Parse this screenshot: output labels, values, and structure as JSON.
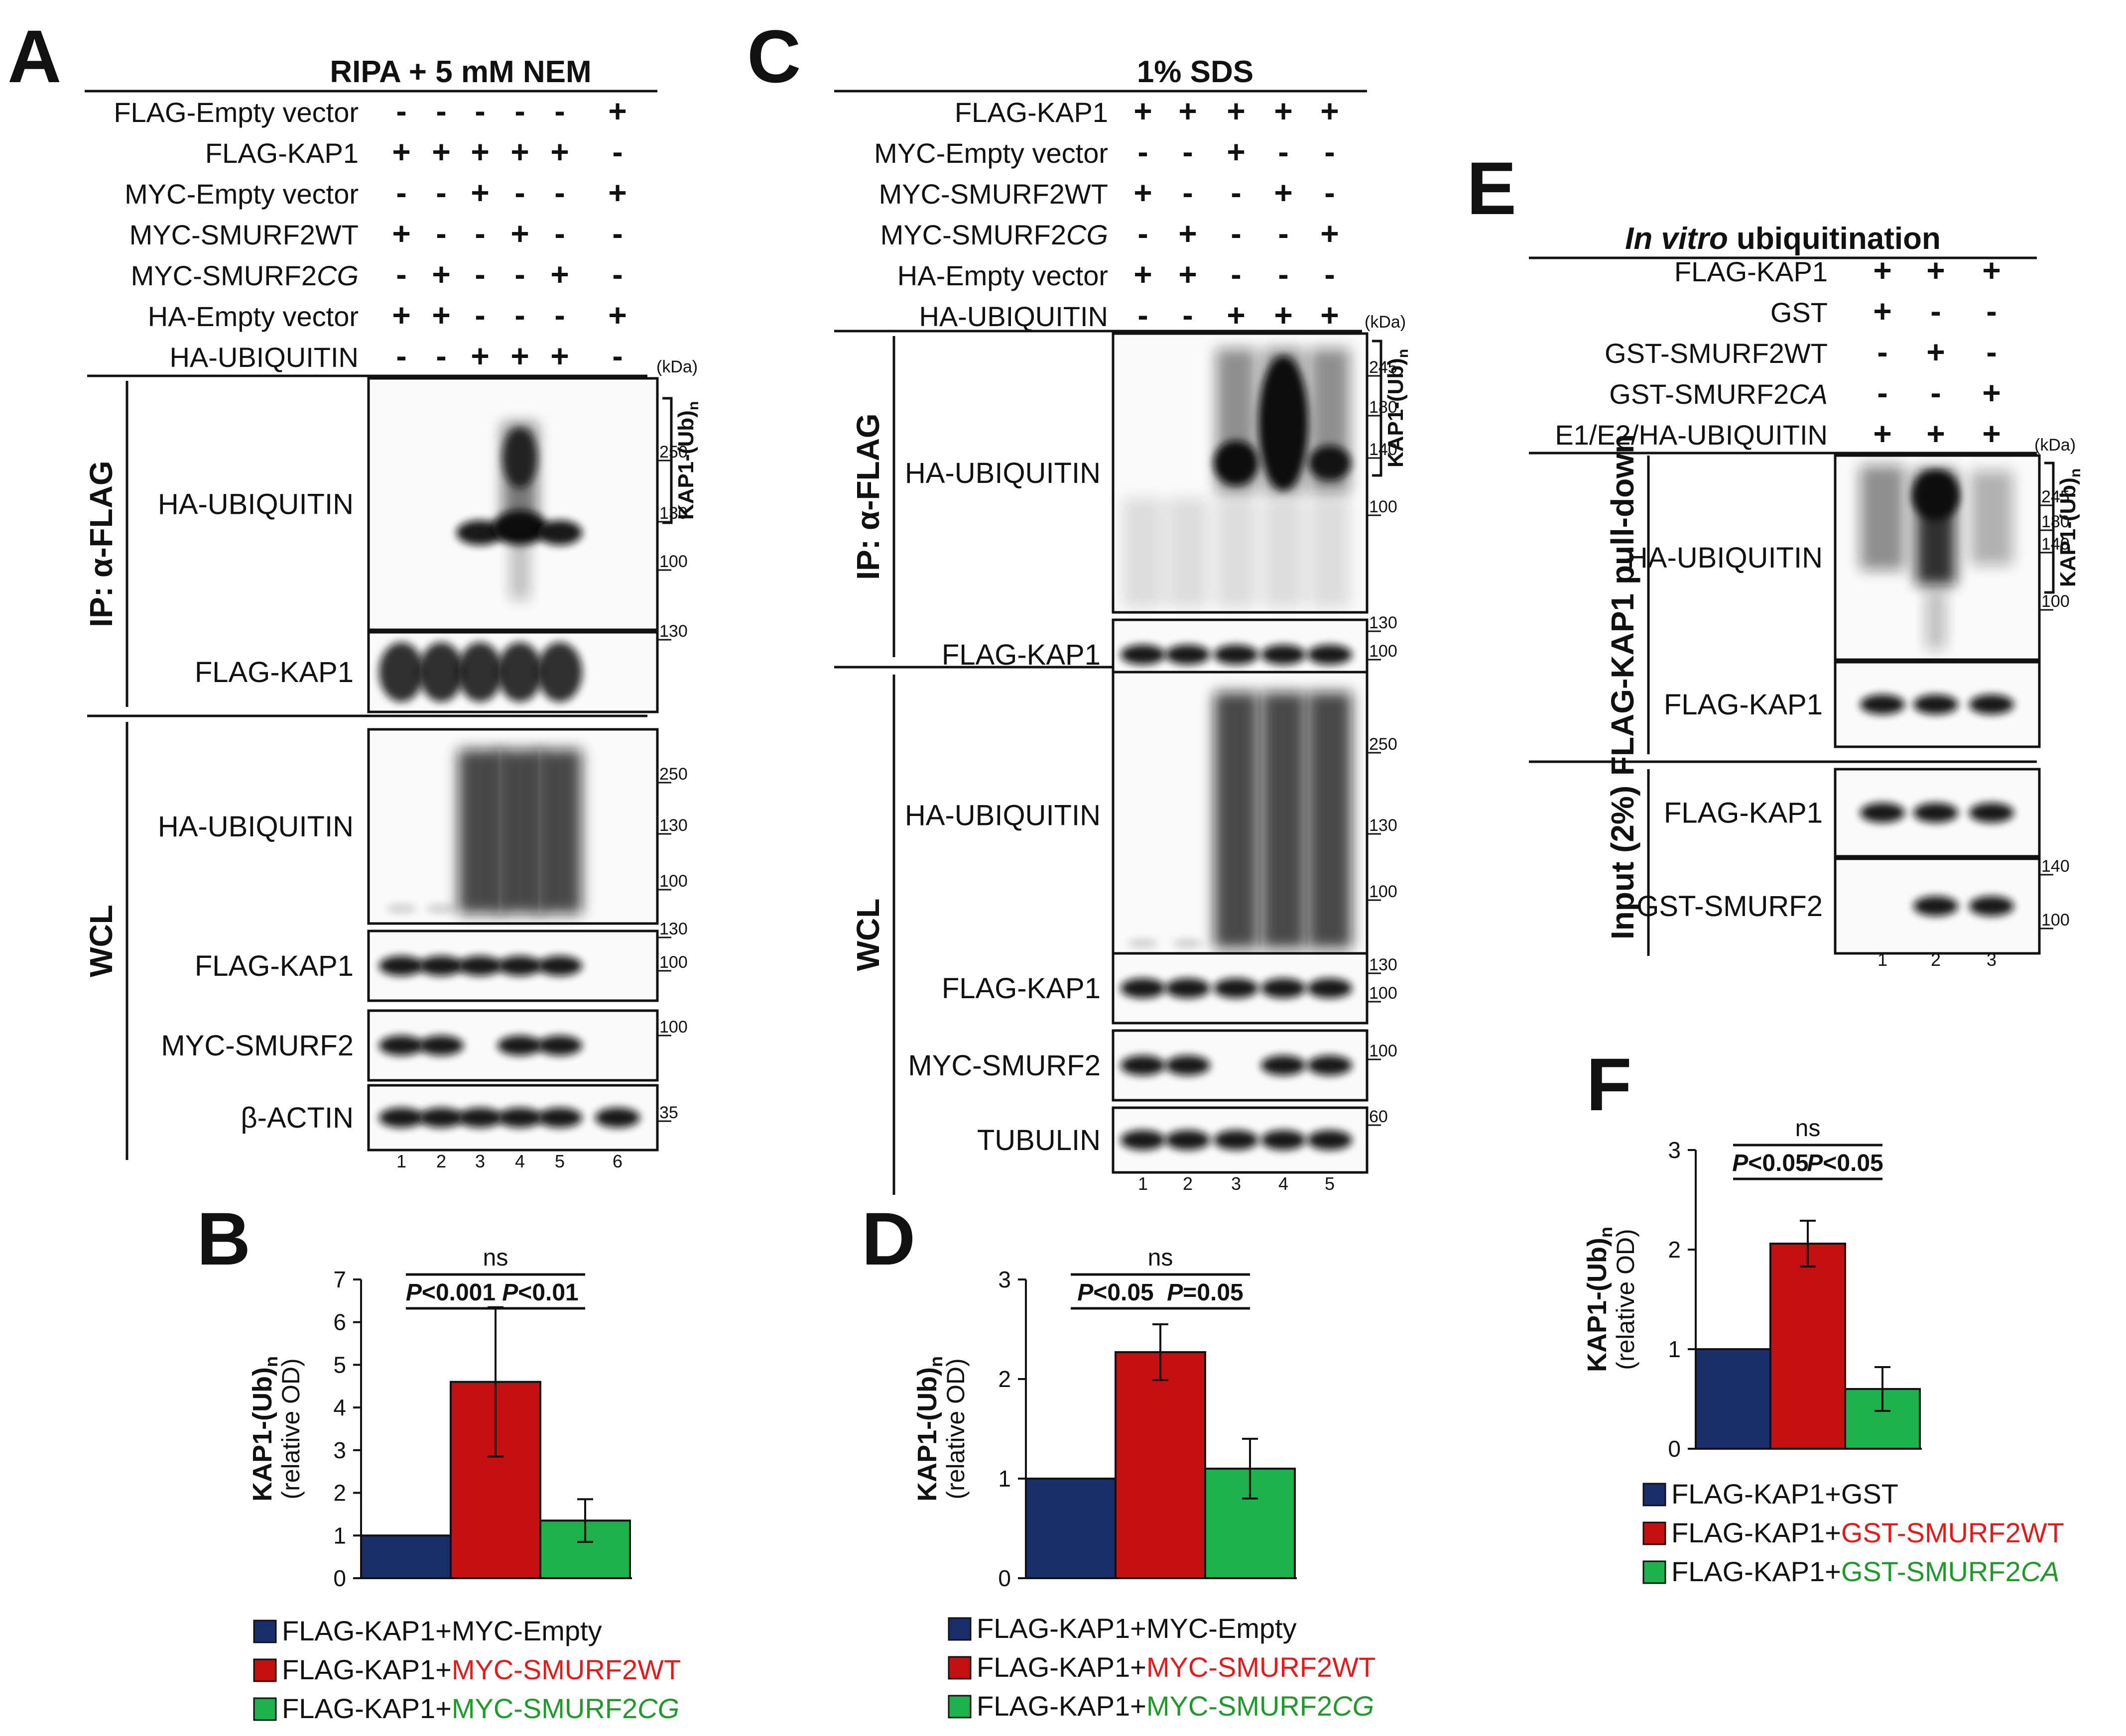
{
  "panelA": {
    "letter": "A",
    "header": "RIPA + 5 mM NEM",
    "conditions": [
      {
        "label": "FLAG-Empty vector",
        "color": "#111111",
        "signs": [
          "-",
          "-",
          "-",
          "-",
          "-",
          "+"
        ]
      },
      {
        "label": "FLAG-KAP1",
        "color": "#111111",
        "signs": [
          "+",
          "+",
          "+",
          "+",
          "+",
          "-"
        ]
      },
      {
        "label": "MYC-Empty vector",
        "color": "#1f3a7a",
        "signs": [
          "-",
          "-",
          "+",
          "-",
          "-",
          "+"
        ]
      },
      {
        "label": "MYC-SMURF2WT",
        "color": "#e31b1b",
        "signs": [
          "+",
          "-",
          "-",
          "+",
          "-",
          "-"
        ]
      },
      {
        "label": "MYC-SMURF2CG",
        "color": "#1f9a2a",
        "signs": [
          "-",
          "+",
          "-",
          "-",
          "+",
          "-"
        ]
      },
      {
        "label": "HA-Empty vector",
        "color": "#111111",
        "signs": [
          "+",
          "+",
          "-",
          "-",
          "-",
          "+"
        ]
      },
      {
        "label": "HA-UBIQUITIN",
        "color": "#111111",
        "signs": [
          "-",
          "-",
          "+",
          "+",
          "+",
          "-"
        ]
      }
    ],
    "kda_label": "(kDa)",
    "ub_bracket_label": "KAP1-(Ub)n",
    "section_labels": [
      "IP: α-FLAG",
      "WCL"
    ],
    "blots": [
      {
        "label": "HA-UBIQUITIN",
        "mw": [
          "250",
          "130",
          "100"
        ]
      },
      {
        "label": "FLAG-KAP1",
        "mw": [
          "130"
        ]
      },
      {
        "label": "HA-UBIQUITIN",
        "mw": [
          "250",
          "130",
          "100"
        ]
      },
      {
        "label": "FLAG-KAP1",
        "mw": [
          "130",
          "100"
        ]
      },
      {
        "label": "MYC-SMURF2",
        "mw": [
          "100"
        ]
      },
      {
        "label": "β-ACTIN",
        "mw": [
          "35"
        ]
      }
    ],
    "lanes": [
      "1",
      "2",
      "3",
      "4",
      "5",
      "6"
    ]
  },
  "panelB": {
    "letter": "B",
    "chart_data": {
      "type": "bar",
      "ylabel": "KAP1-(Ub)n",
      "ylabel_sub": "(relative OD)",
      "ylim": [
        0,
        7
      ],
      "yticks": [
        "0",
        "1",
        "2",
        "3",
        "4",
        "5",
        "6",
        "7"
      ],
      "categories": [
        "FLAG-KAP1+MYC-Empty",
        "FLAG-KAP1+MYC-SMURF2WT",
        "FLAG-KAP1+MYC-SMURF2CG"
      ],
      "values": [
        1.0,
        4.6,
        1.35
      ],
      "errors": [
        0,
        1.75,
        0.5
      ],
      "colors": [
        "#1a2d6b",
        "#c41010",
        "#1db14b"
      ],
      "significance": [
        {
          "from": 0,
          "to": 2,
          "text": "ns"
        },
        {
          "from": 0,
          "to": 1,
          "text": "P<0.001"
        },
        {
          "from": 1,
          "to": 2,
          "text": "P<0.01"
        }
      ],
      "legend": [
        {
          "prefix": "FLAG-KAP1+",
          "suffix": "MYC-Empty",
          "suffix_color": "#111111"
        },
        {
          "prefix": "FLAG-KAP1+",
          "suffix": "MYC-SMURF2WT",
          "suffix_color": "#e31b1b"
        },
        {
          "prefix": "FLAG-KAP1+",
          "suffix": "MYC-SMURF2CG",
          "suffix_color": "#1f9a2a"
        }
      ]
    }
  },
  "panelC": {
    "letter": "C",
    "header": "1% SDS",
    "conditions": [
      {
        "label": "FLAG-KAP1",
        "color": "#111111",
        "signs": [
          "+",
          "+",
          "+",
          "+",
          "+"
        ]
      },
      {
        "label": "MYC-Empty vector",
        "color": "#1f3a7a",
        "signs": [
          "-",
          "-",
          "+",
          "-",
          "-"
        ]
      },
      {
        "label": "MYC-SMURF2WT",
        "color": "#e31b1b",
        "signs": [
          "+",
          "-",
          "-",
          "+",
          "-"
        ]
      },
      {
        "label": "MYC-SMURF2CG",
        "color": "#1f9a2a",
        "signs": [
          "-",
          "+",
          "-",
          "-",
          "+"
        ]
      },
      {
        "label": "HA-Empty vector",
        "color": "#111111",
        "signs": [
          "+",
          "+",
          "-",
          "-",
          "-"
        ]
      },
      {
        "label": "HA-UBIQUITIN",
        "color": "#111111",
        "signs": [
          "-",
          "-",
          "+",
          "+",
          "+"
        ]
      }
    ],
    "kda_label": "(kDa)",
    "ub_bracket_label": "KAP1-(Ub)n",
    "section_labels": [
      "IP: α-FLAG",
      "WCL"
    ],
    "blots": [
      {
        "label": "HA-UBIQUITIN",
        "mw": [
          "245",
          "180",
          "140",
          "100"
        ]
      },
      {
        "label": "FLAG-KAP1",
        "mw": [
          "130",
          "100"
        ]
      },
      {
        "label": "HA-UBIQUITIN",
        "mw": [
          "250",
          "130",
          "100"
        ]
      },
      {
        "label": "FLAG-KAP1",
        "mw": [
          "130",
          "100"
        ]
      },
      {
        "label": "MYC-SMURF2",
        "mw": [
          "100"
        ]
      },
      {
        "label": "TUBULIN",
        "mw": [
          "60"
        ]
      }
    ],
    "lanes": [
      "1",
      "2",
      "3",
      "4",
      "5"
    ]
  },
  "panelD": {
    "letter": "D",
    "chart_data": {
      "type": "bar",
      "ylabel": "KAP1-(Ub)n",
      "ylabel_sub": "(relative OD)",
      "ylim": [
        0,
        3
      ],
      "yticks": [
        "0",
        "1",
        "2",
        "3"
      ],
      "categories": [
        "FLAG-KAP1+MYC-Empty",
        "FLAG-KAP1+MYC-SMURF2WT",
        "FLAG-KAP1+MYC-SMURF2CG"
      ],
      "values": [
        1.0,
        2.27,
        1.1
      ],
      "errors": [
        0,
        0.28,
        0.3
      ],
      "colors": [
        "#1a2d6b",
        "#c41010",
        "#1db14b"
      ],
      "significance": [
        {
          "from": 0,
          "to": 2,
          "text": "ns"
        },
        {
          "from": 0,
          "to": 1,
          "text": "P<0.05"
        },
        {
          "from": 1,
          "to": 2,
          "text": "P=0.05"
        }
      ],
      "legend": [
        {
          "prefix": "FLAG-KAP1+",
          "suffix": "MYC-Empty",
          "suffix_color": "#111111"
        },
        {
          "prefix": "FLAG-KAP1+",
          "suffix": "MYC-SMURF2WT",
          "suffix_color": "#e31b1b"
        },
        {
          "prefix": "FLAG-KAP1+",
          "suffix": "MYC-SMURF2CG",
          "suffix_color": "#1f9a2a"
        }
      ]
    }
  },
  "panelE": {
    "letter": "E",
    "header": "In vitro ubiquitination",
    "conditions": [
      {
        "label": "FLAG-KAP1",
        "color": "#111111",
        "signs": [
          "+",
          "+",
          "+"
        ]
      },
      {
        "label": "GST",
        "color": "#1f3a7a",
        "signs": [
          "+",
          "-",
          "-"
        ]
      },
      {
        "label": "GST-SMURF2WT",
        "color": "#e31b1b",
        "signs": [
          "-",
          "+",
          "-"
        ]
      },
      {
        "label": "GST-SMURF2CA",
        "color": "#1f9a2a",
        "signs": [
          "-",
          "-",
          "+"
        ]
      },
      {
        "label": "E1/E2/HA-UBIQUITIN",
        "color": "#111111",
        "signs": [
          "+",
          "+",
          "+"
        ]
      }
    ],
    "kda_label": "(kDa)",
    "ub_bracket_label": "KAP1-(Ub)n",
    "section_labels": [
      "FLAG-KAP1 pull-down",
      "Input (2%)"
    ],
    "blots": [
      {
        "label": "HA-UBIQUITIN",
        "mw": [
          "245",
          "180",
          "140",
          "100"
        ]
      },
      {
        "label": "FLAG-KAP1",
        "mw": []
      },
      {
        "label": "FLAG-KAP1",
        "mw": []
      },
      {
        "label": "GST-SMURF2",
        "mw": [
          "140",
          "100"
        ]
      }
    ],
    "lanes": [
      "1",
      "2",
      "3"
    ]
  },
  "panelF": {
    "letter": "F",
    "chart_data": {
      "type": "bar",
      "ylabel": "KAP1-(Ub)n",
      "ylabel_sub": "(relative OD)",
      "ylim": [
        0,
        3
      ],
      "yticks": [
        "0",
        "1",
        "2",
        "3"
      ],
      "categories": [
        "FLAG-KAP1+GST",
        "FLAG-KAP1+GST-SMURF2WT",
        "FLAG-KAP1+GST-SMURF2CA"
      ],
      "values": [
        1.0,
        2.06,
        0.6
      ],
      "errors": [
        0,
        0.23,
        0.22
      ],
      "colors": [
        "#1a2d6b",
        "#c41010",
        "#1db14b"
      ],
      "significance": [
        {
          "from": 0,
          "to": 2,
          "text": "ns"
        },
        {
          "from": 0,
          "to": 1,
          "text": "P<0.05"
        },
        {
          "from": 1,
          "to": 2,
          "text": "P<0.05"
        }
      ],
      "legend": [
        {
          "prefix": "FLAG-KAP1+",
          "suffix": "GST",
          "suffix_color": "#111111"
        },
        {
          "prefix": "FLAG-KAP1+",
          "suffix": "GST-SMURF2WT",
          "suffix_color": "#e31b1b"
        },
        {
          "prefix": "FLAG-KAP1+",
          "suffix": "GST-SMURF2CA",
          "suffix_color": "#1f9a2a"
        }
      ]
    }
  }
}
